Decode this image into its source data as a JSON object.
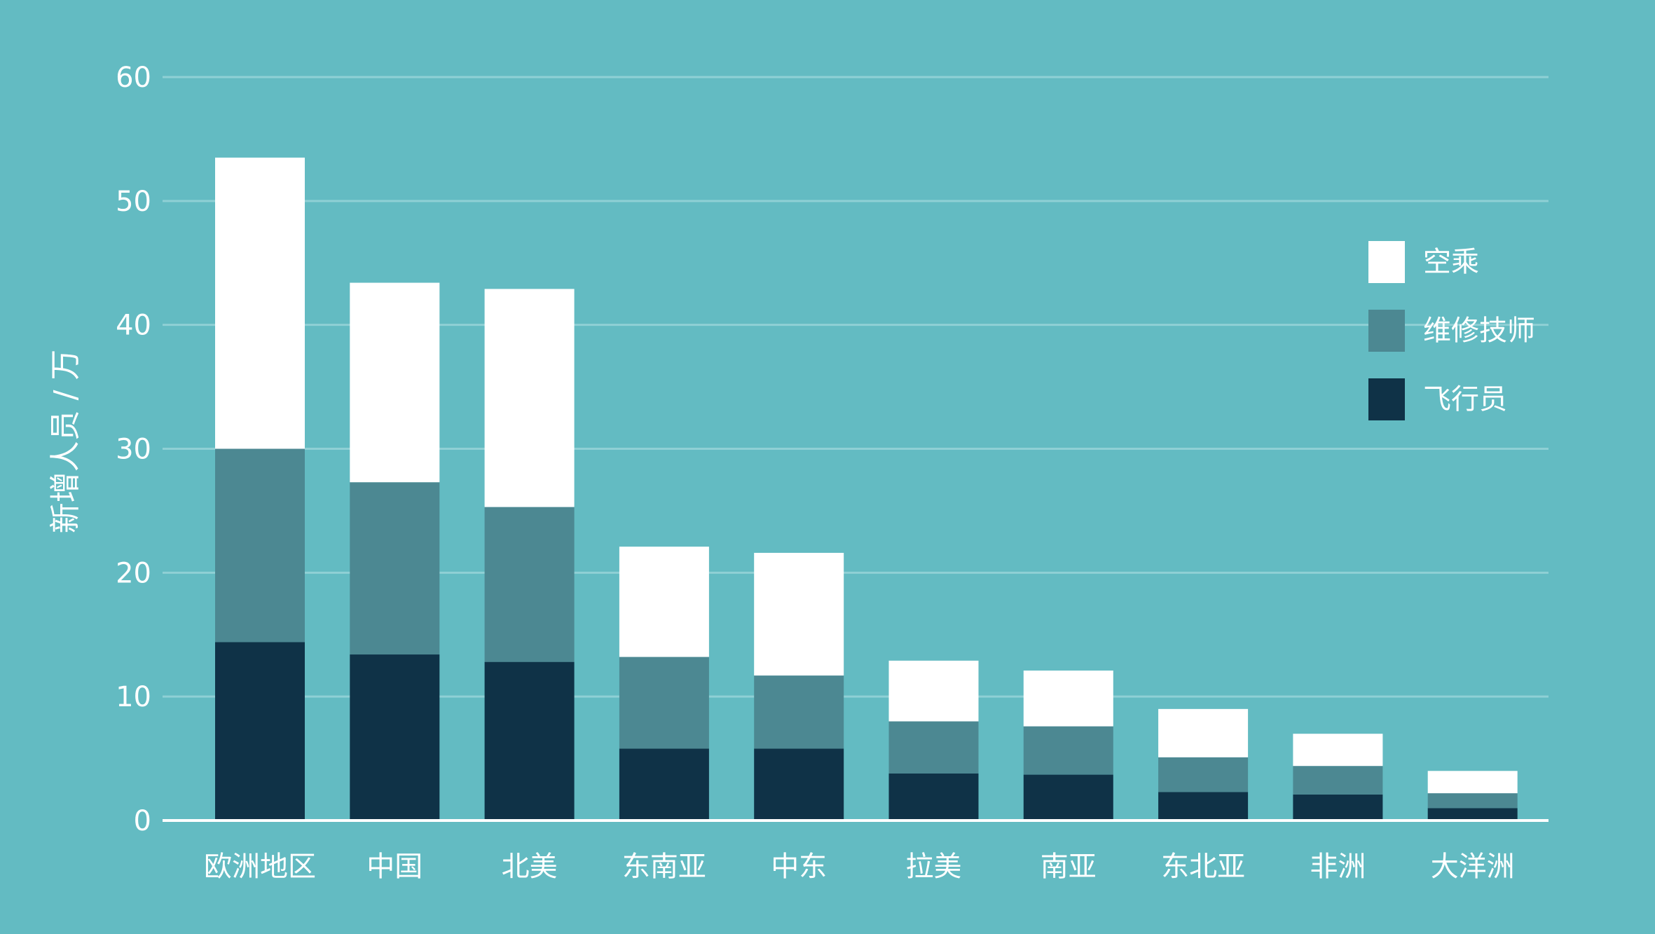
{
  "chart_data": {
    "type": "bar",
    "stacked": true,
    "title": "",
    "xlabel": "",
    "ylabel": "新增人员 / 万",
    "ylim": [
      0,
      60
    ],
    "yticks": [
      0,
      10,
      20,
      30,
      40,
      50,
      60
    ],
    "grid": true,
    "legend_position": "right",
    "categories": [
      "欧洲地区",
      "中国",
      "北美",
      "东南亚",
      "中东",
      "拉美",
      "南亚",
      "东北亚",
      "非洲",
      "大洋洲"
    ],
    "series": [
      {
        "name": "飞行员",
        "color": "#0F3247",
        "values": [
          14.4,
          13.4,
          12.8,
          5.8,
          5.8,
          3.8,
          3.7,
          2.3,
          2.1,
          1.0
        ]
      },
      {
        "name": "维修技师",
        "color": "#4C8892",
        "values": [
          15.6,
          13.9,
          12.5,
          7.4,
          5.9,
          4.2,
          3.9,
          2.8,
          2.3,
          1.2
        ]
      },
      {
        "name": "空乘",
        "color": "#FFFFFF",
        "values": [
          23.5,
          16.1,
          17.6,
          8.9,
          9.9,
          4.9,
          4.5,
          3.9,
          2.6,
          1.8
        ]
      }
    ],
    "legend_order": [
      "空乘",
      "维修技师",
      "飞行员"
    ]
  },
  "colors": {
    "background": "#63BBC2",
    "gridline": "#8FD0D5",
    "axis": "#FFFFFF",
    "text": "#FFFFFF"
  }
}
